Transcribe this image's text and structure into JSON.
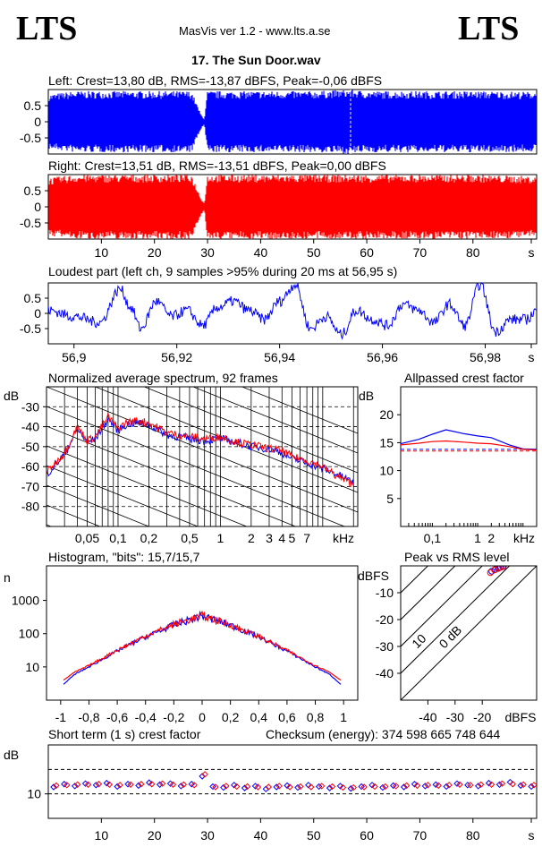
{
  "header": {
    "logo_left": "LTS",
    "logo_right": "LTS",
    "app_title": "MasVis ver 1.2 - www.lts.a.se",
    "file_title": "17. The Sun Door.wav"
  },
  "colors": {
    "left": "#0000ff",
    "right": "#ff0000",
    "axis": "#000000",
    "grid": "#000000"
  },
  "chart_data": [
    {
      "id": "left_waveform",
      "type": "area",
      "title": "Left: Crest=13,80 dB, RMS=-13,87 dBFS, Peak=-0,06 dBFS",
      "xlim": [
        0,
        92
      ],
      "ylim": [
        -1,
        1
      ],
      "yticks": [
        "0.5",
        "0",
        "-0.5"
      ],
      "envelope": [
        [
          0,
          0.85
        ],
        [
          5,
          0.95
        ],
        [
          10,
          0.95
        ],
        [
          20,
          0.95
        ],
        [
          27,
          0.95
        ],
        [
          28.7,
          0.25
        ],
        [
          29.4,
          0.08
        ],
        [
          30,
          0.95
        ],
        [
          40,
          0.95
        ],
        [
          50,
          0.95
        ],
        [
          56.95,
          1.0
        ],
        [
          60,
          0.95
        ],
        [
          70,
          0.95
        ],
        [
          80,
          0.95
        ],
        [
          92,
          0.93
        ]
      ]
    },
    {
      "id": "right_waveform",
      "type": "area",
      "title": "Right: Crest=13,51 dB, RMS=-13,51 dBFS, Peak=0,00 dBFS",
      "xlim": [
        0,
        92
      ],
      "ylim": [
        -1,
        1
      ],
      "yticks": [
        "0.5",
        "0",
        "-0.5"
      ],
      "xticks": [
        "10",
        "20",
        "30",
        "40",
        "50",
        "60",
        "70",
        "80",
        "s"
      ],
      "envelope": [
        [
          0,
          0.9
        ],
        [
          5,
          1.0
        ],
        [
          10,
          1.0
        ],
        [
          20,
          1.0
        ],
        [
          27,
          1.0
        ],
        [
          28.7,
          0.3
        ],
        [
          29.4,
          0.1
        ],
        [
          30,
          1.0
        ],
        [
          40,
          1.0
        ],
        [
          50,
          1.0
        ],
        [
          60,
          1.0
        ],
        [
          70,
          1.0
        ],
        [
          80,
          1.0
        ],
        [
          92,
          0.95
        ]
      ]
    },
    {
      "id": "loudest_part",
      "type": "line",
      "title": "Loudest part (left  ch, 9 samples >95% during 20 ms at 56,95 s)",
      "xlim": [
        56.895,
        56.99
      ],
      "ylim": [
        -1,
        1
      ],
      "yticks": [
        "0.5",
        "0",
        "-0.5"
      ],
      "xticks": [
        "56,9",
        "56,92",
        "56,94",
        "56,96",
        "56,98",
        "s"
      ],
      "x": [
        56.895,
        56.9,
        56.905,
        56.909,
        56.911,
        56.913,
        56.916,
        56.919,
        56.922,
        56.925,
        56.928,
        56.931,
        56.934,
        56.937,
        56.94,
        56.943,
        56.946,
        56.949,
        56.952,
        56.955,
        56.958,
        56.961,
        56.964,
        56.967,
        56.97,
        56.973,
        56.976,
        56.979,
        56.982,
        56.985,
        56.988,
        56.99
      ],
      "y": [
        0.1,
        -0.1,
        -0.3,
        0.8,
        0.2,
        -0.5,
        0.4,
        -0.1,
        0.1,
        -0.4,
        0.2,
        0.4,
        0.1,
        -0.2,
        0.4,
        0.95,
        -0.5,
        -0.1,
        -0.7,
        0.1,
        -0.2,
        -0.4,
        0.3,
        0.1,
        -0.3,
        0.3,
        -0.4,
        0.95,
        -0.6,
        -0.2,
        -0.2,
        0.1
      ]
    },
    {
      "id": "spectrum",
      "type": "line",
      "title": "Normalized average spectrum, 92 frames",
      "ylabel": "dB",
      "xlabel": "kHz",
      "ylim": [
        -90,
        -20
      ],
      "yticks": [
        "-30",
        "-40",
        "-50",
        "-60",
        "-70",
        "-80"
      ],
      "xticks": [
        "0,05",
        "0,1",
        "0,2",
        "0,5",
        "1",
        "2",
        "3",
        "4",
        "5",
        "7",
        "kHz"
      ],
      "series": [
        {
          "color_key": "left",
          "x": [
            0.02,
            0.03,
            0.04,
            0.05,
            0.06,
            0.08,
            0.1,
            0.12,
            0.15,
            0.2,
            0.3,
            0.5,
            0.7,
            1,
            1.5,
            2,
            3,
            4,
            5,
            7,
            10,
            14,
            20
          ],
          "y": [
            -64,
            -54,
            -41,
            -48,
            -46,
            -36,
            -42,
            -39,
            -38,
            -39,
            -44,
            -46,
            -47,
            -46,
            -48,
            -50,
            -51,
            -53,
            -56,
            -58,
            -61,
            -64,
            -68
          ]
        },
        {
          "color_key": "right",
          "x": [
            0.02,
            0.03,
            0.04,
            0.05,
            0.06,
            0.08,
            0.1,
            0.12,
            0.15,
            0.2,
            0.3,
            0.5,
            0.7,
            1,
            1.5,
            2,
            3,
            4,
            5,
            7,
            10,
            14,
            20
          ],
          "y": [
            -63,
            -53,
            -40,
            -47,
            -45,
            -35,
            -41,
            -38,
            -37,
            -38,
            -43,
            -45,
            -46,
            -45,
            -48,
            -49,
            -51,
            -52,
            -55,
            -57,
            -60,
            -65,
            -69
          ]
        }
      ]
    },
    {
      "id": "allpassed_crest",
      "type": "line",
      "title": "Allpassed crest factor",
      "ylabel": "dB",
      "xlabel": "kHz",
      "ylim": [
        0,
        25
      ],
      "yticks": [
        "20",
        "15",
        "10",
        "5"
      ],
      "xticks": [
        "0,1",
        "1",
        "2",
        "kHz"
      ],
      "series": [
        {
          "color_key": "left",
          "x": [
            0.02,
            0.05,
            0.1,
            0.2,
            0.5,
            1,
            2,
            5,
            10,
            20
          ],
          "y": [
            14.8,
            15.6,
            16.5,
            17.3,
            16.6,
            16.2,
            15.9,
            14.6,
            13.9,
            13.8
          ]
        },
        {
          "color_key": "right",
          "x": [
            0.02,
            0.05,
            0.1,
            0.2,
            0.5,
            1,
            2,
            5,
            10,
            20
          ],
          "y": [
            14.6,
            14.9,
            15.2,
            15.3,
            15.1,
            14.9,
            14.8,
            14.3,
            13.8,
            13.7
          ]
        }
      ],
      "reference_lines": [
        13.8,
        13.5
      ]
    },
    {
      "id": "histogram",
      "type": "line",
      "title": "Histogram, \"bits\": 15,7/15,7",
      "ylabel": "n",
      "log_y": true,
      "yticks": [
        "1000",
        "100",
        "10"
      ],
      "xticks": [
        "-1",
        "-0,8",
        "-0,6",
        "-0,4",
        "-0,2",
        "0",
        "0,2",
        "0,4",
        "0,6",
        "0,8",
        "1"
      ],
      "xlim": [
        -1.1,
        1.1
      ],
      "series": [
        {
          "color_key": "left",
          "x": [
            -0.98,
            -0.9,
            -0.8,
            -0.6,
            -0.4,
            -0.2,
            0,
            0.2,
            0.4,
            0.6,
            0.8,
            0.9,
            0.98
          ],
          "y": [
            3,
            6,
            10,
            30,
            80,
            180,
            350,
            180,
            80,
            30,
            10,
            6,
            3
          ]
        },
        {
          "color_key": "right",
          "x": [
            -0.98,
            -0.9,
            -0.8,
            -0.6,
            -0.4,
            -0.2,
            0,
            0.2,
            0.4,
            0.6,
            0.8,
            0.9,
            0.98
          ],
          "y": [
            4,
            7,
            11,
            32,
            85,
            190,
            340,
            185,
            82,
            31,
            11,
            7,
            4
          ]
        }
      ]
    },
    {
      "id": "peak_vs_rms",
      "type": "scatter",
      "title": "Peak vs RMS level",
      "ylabel": "dBFS",
      "xlabel": "dBFS",
      "xlim": [
        -50,
        0
      ],
      "ylim": [
        -50,
        0
      ],
      "xticks": [
        "-40",
        "-30",
        "-20",
        "dBFS"
      ],
      "yticks": [
        "-10",
        "-20",
        "-30",
        "-40"
      ],
      "crest_lines": [
        "40",
        "30",
        "20",
        "10",
        "0 dB"
      ],
      "series": [
        {
          "color_key": "left",
          "x": [
            -16.5,
            -15.2,
            -14.0,
            -13.2,
            -12.5
          ],
          "y": [
            -2.0,
            -1.3,
            -0.8,
            -0.5,
            -0.3
          ]
        },
        {
          "color_key": "right",
          "x": [
            -17.0,
            -15.5,
            -14.2,
            -13.5,
            -12.2
          ],
          "y": [
            -2.5,
            -1.5,
            -1.0,
            -0.6,
            -0.2
          ]
        }
      ]
    },
    {
      "id": "short_term_crest",
      "type": "scatter",
      "title": "Short term (1 s) crest factor",
      "ylabel": "dB",
      "ylim": [
        5,
        20
      ],
      "yticks": [
        "10"
      ],
      "xticks": [
        "10",
        "20",
        "30",
        "40",
        "50",
        "60",
        "70",
        "80",
        "s"
      ],
      "xlim": [
        0,
        92
      ],
      "dashed_levels": [
        15,
        10
      ],
      "series": [
        {
          "color_key": "left",
          "x": [
            1,
            3,
            5,
            7,
            9,
            11,
            13,
            15,
            17,
            19,
            21,
            23,
            25,
            27,
            29,
            31,
            33,
            35,
            37,
            39,
            41,
            43,
            45,
            47,
            49,
            51,
            53,
            55,
            57,
            59,
            61,
            63,
            65,
            67,
            69,
            71,
            73,
            75,
            77,
            79,
            81,
            83,
            85,
            87,
            89,
            91
          ],
          "y": [
            11.4,
            12.0,
            11.6,
            12.1,
            11.8,
            12.2,
            11.5,
            12.0,
            11.7,
            12.3,
            11.9,
            12.1,
            11.6,
            12.0,
            13.6,
            11.5,
            11.3,
            11.8,
            11.2,
            11.6,
            11.0,
            11.4,
            11.7,
            11.3,
            11.8,
            11.5,
            11.2,
            11.6,
            11.1,
            11.5,
            11.8,
            11.3,
            11.7,
            11.4,
            12.0,
            11.6,
            11.9,
            11.5,
            12.1,
            11.8,
            11.6,
            12.2,
            11.9,
            12.4,
            11.7,
            11.5
          ]
        },
        {
          "color_key": "right",
          "x": [
            1,
            3,
            5,
            7,
            9,
            11,
            13,
            15,
            17,
            19,
            21,
            23,
            25,
            27,
            29,
            31,
            33,
            35,
            37,
            39,
            41,
            43,
            45,
            47,
            49,
            51,
            53,
            55,
            57,
            59,
            61,
            63,
            65,
            67,
            69,
            71,
            73,
            75,
            77,
            79,
            81,
            83,
            85,
            87,
            89,
            91
          ],
          "y": [
            11.7,
            11.8,
            11.9,
            11.9,
            12.0,
            11.9,
            11.8,
            11.9,
            12.0,
            12.0,
            12.1,
            11.9,
            11.9,
            11.8,
            14.0,
            11.4,
            11.6,
            11.5,
            11.5,
            11.4,
            11.4,
            11.6,
            11.4,
            11.5,
            11.4,
            11.6,
            11.5,
            11.3,
            11.3,
            11.4,
            11.5,
            11.5,
            11.6,
            11.7,
            11.7,
            11.8,
            11.7,
            11.8,
            11.9,
            11.8,
            11.9,
            11.9,
            12.1,
            12.0,
            11.9,
            11.8
          ]
        }
      ]
    }
  ],
  "labels": {
    "checksum": "Checksum (energy):  374 598 665 748 644"
  }
}
